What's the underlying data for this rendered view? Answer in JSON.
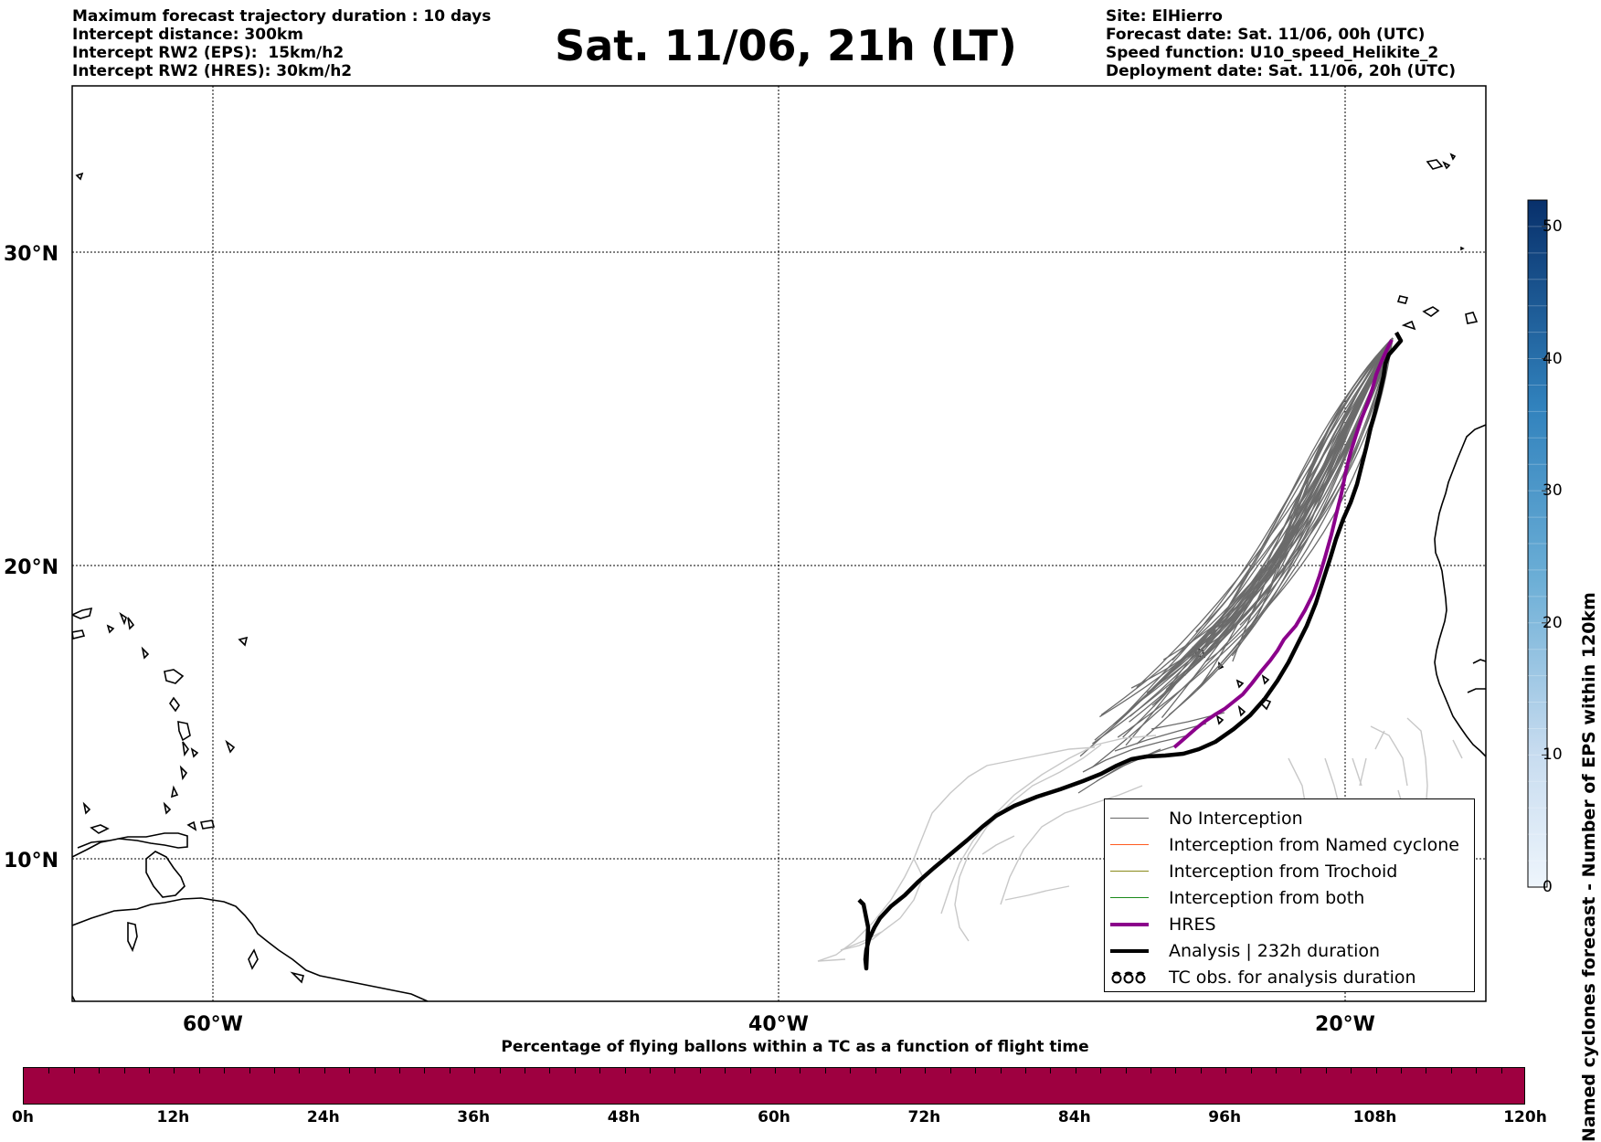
{
  "header": {
    "left_lines": [
      "Maximum forecast trajectory duration : 10 days",
      "Intercept distance: 300km",
      "Intercept RW2 (EPS):  15km/h2",
      "Intercept RW2 (HRES): 30km/h2"
    ],
    "title": "Sat. 11/06, 21h (LT)",
    "right_lines": [
      "Site: ElHierro",
      "Forecast date: Sat. 11/06, 00h (UTC)",
      "Speed function: U10_speed_Helikite_2",
      "Deployment date: Sat. 11/06, 20h (UTC)"
    ]
  },
  "map": {
    "lat_labels": [
      "30°N",
      "20°N",
      "10°N"
    ],
    "lon_labels": [
      "60°W",
      "40°W",
      "20°W"
    ]
  },
  "legend": {
    "items": [
      {
        "label": "No Interception",
        "color": "#666666",
        "style": "line-thin"
      },
      {
        "label": "Interception from Named cyclone",
        "color": "#ff5a1f",
        "style": "line-thin"
      },
      {
        "label": "Interception from Trochoid",
        "color": "#8a8a1a",
        "style": "line-thin"
      },
      {
        "label": "Interception from both",
        "color": "#1a8a1a",
        "style": "line-thin"
      },
      {
        "label": "HRES",
        "color": "#8b008b",
        "style": "line-thick"
      },
      {
        "label": "Analysis | 232h duration",
        "color": "#000000",
        "style": "line-thick"
      },
      {
        "label": "TC obs. for analysis duration",
        "color": "#000000",
        "style": "tc-symbol",
        "icon": "tc-symbol-icon"
      }
    ]
  },
  "colorbar": {
    "title": "Named cyclones forecast - Number of EPS within 120km",
    "ticks": [
      "0",
      "10",
      "20",
      "30",
      "40",
      "50"
    ],
    "max": 52
  },
  "percentage_bar": {
    "title": "Percentage of flying ballons within a TC as a function of flight time",
    "tick_labels": [
      "0h",
      "12h",
      "24h",
      "36h",
      "48h",
      "60h",
      "72h",
      "84h",
      "96h",
      "108h",
      "120h"
    ],
    "color": "#9e0040"
  }
}
